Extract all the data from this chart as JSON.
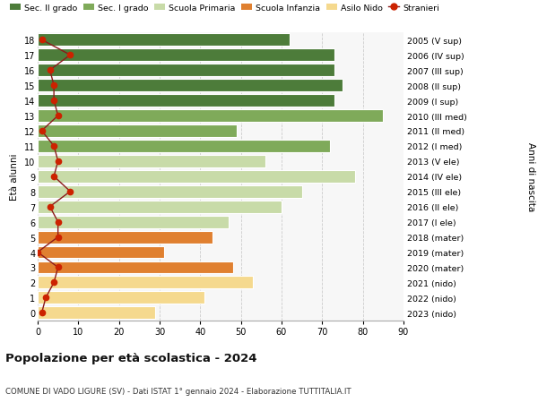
{
  "ages": [
    0,
    1,
    2,
    3,
    4,
    5,
    6,
    7,
    8,
    9,
    10,
    11,
    12,
    13,
    14,
    15,
    16,
    17,
    18
  ],
  "bar_values": [
    29,
    41,
    53,
    48,
    31,
    43,
    47,
    60,
    65,
    78,
    56,
    72,
    49,
    85,
    73,
    75,
    73,
    73,
    62
  ],
  "right_labels": [
    "2023 (nido)",
    "2022 (nido)",
    "2021 (nido)",
    "2020 (mater)",
    "2019 (mater)",
    "2018 (mater)",
    "2017 (I ele)",
    "2016 (II ele)",
    "2015 (III ele)",
    "2014 (IV ele)",
    "2013 (V ele)",
    "2012 (I med)",
    "2011 (II med)",
    "2010 (III med)",
    "2009 (I sup)",
    "2008 (II sup)",
    "2007 (III sup)",
    "2006 (IV sup)",
    "2005 (V sup)"
  ],
  "bar_colors": [
    "#f5d98e",
    "#f5d98e",
    "#f5d98e",
    "#e08030",
    "#e08030",
    "#e08030",
    "#c8dba8",
    "#c8dba8",
    "#c8dba8",
    "#c8dba8",
    "#c8dba8",
    "#7faa5a",
    "#7faa5a",
    "#7faa5a",
    "#4d7c3a",
    "#4d7c3a",
    "#4d7c3a",
    "#4d7c3a",
    "#4d7c3a"
  ],
  "stranieri_values": [
    1,
    2,
    4,
    5,
    0,
    5,
    5,
    3,
    8,
    4,
    5,
    4,
    1,
    5,
    4,
    4,
    3,
    8,
    1
  ],
  "legend_labels": [
    "Sec. II grado",
    "Sec. I grado",
    "Scuola Primaria",
    "Scuola Infanzia",
    "Asilo Nido",
    "Stranieri"
  ],
  "legend_colors": [
    "#4d7c3a",
    "#7faa5a",
    "#c8dba8",
    "#e08030",
    "#f5d98e",
    "#cc0000"
  ],
  "title1": "Popolazione per età scolastica - 2024",
  "title2": "COMUNE DI VADO LIGURE (SV) - Dati ISTAT 1° gennaio 2024 - Elaborazione TUTTITALIA.IT",
  "xlabel_left": "Età alunni",
  "xlabel_right": "Anni di nascita",
  "xlim": [
    0,
    90
  ],
  "xticks": [
    0,
    10,
    20,
    30,
    40,
    50,
    60,
    70,
    80,
    90
  ],
  "background_color": "#ffffff",
  "plot_bg_color": "#f7f7f7",
  "grid_color": "#cccccc",
  "bar_height": 0.82,
  "stranieri_line_color": "#8b1a1a",
  "stranieri_marker_color": "#cc2200"
}
